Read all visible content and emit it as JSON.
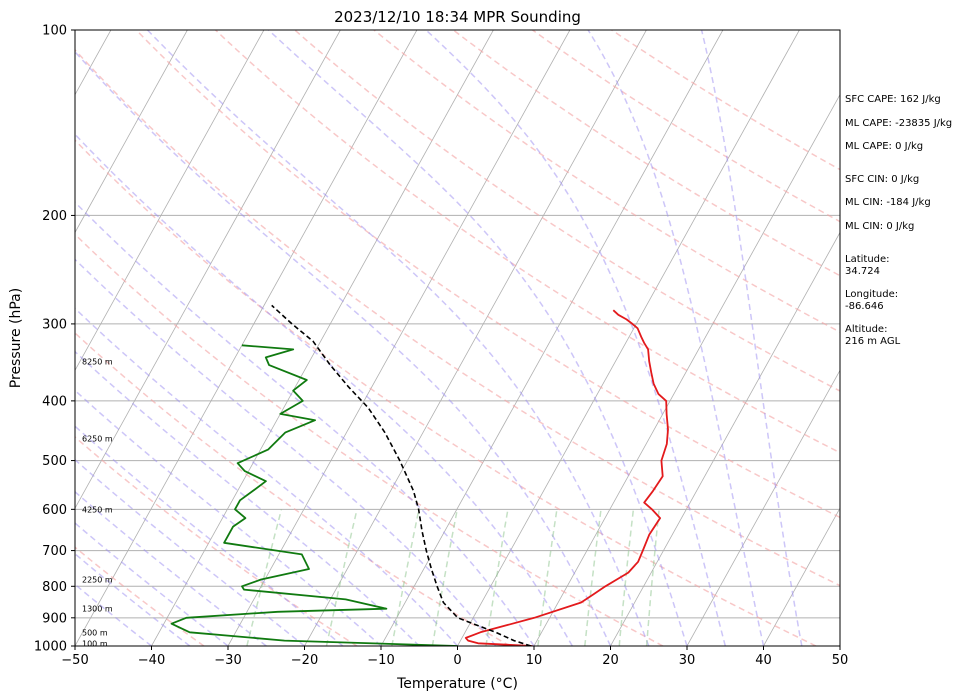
{
  "chart_data": {
    "type": "line",
    "title": "2023/12/10 18:34 MPR Sounding",
    "xlabel": "Temperature (°C)",
    "ylabel": "Pressure (hPa)",
    "xlim": [
      -50,
      50
    ],
    "ylim": [
      1000,
      100
    ],
    "y_scale": "log",
    "skew": true,
    "grid": true,
    "x_ticks": [
      "−50",
      "−40",
      "−30",
      "−20",
      "−10",
      "0",
      "10",
      "20",
      "30",
      "40",
      "50"
    ],
    "y_ticks": [
      "100",
      "200",
      "300",
      "400",
      "500",
      "600",
      "700",
      "800",
      "900",
      "1000"
    ],
    "series": [
      {
        "color": "#e31a1c",
        "x": [
          9.8,
          2.5,
          1.0,
          0.5,
          2.0,
          8.0,
          13.0,
          14.0,
          15.0,
          16.0,
          17.0,
          17.5,
          17.3,
          17.0,
          17.2,
          15.5,
          14.0,
          14.3,
          14.5,
          13.2,
          12.7,
          11.8,
          10.5,
          9.5,
          8.0,
          6.6,
          5.5,
          4.4,
          3.4,
          2.4,
          1.6,
          0.5,
          -0.5,
          -1.6,
          -3.0,
          -4.0
        ],
        "y": [
          1000,
          990,
          980,
          970,
          950,
          900,
          850,
          825,
          800,
          780,
          760,
          730,
          700,
          660,
          620,
          600,
          585,
          560,
          530,
          500,
          470,
          445,
          420,
          400,
          390,
          375,
          360,
          345,
          330,
          322,
          315,
          305,
          300,
          295,
          290,
          285
        ]
      },
      {
        "color": "#107a10",
        "x": [
          0.0,
          -23.0,
          -36.0,
          -39.0,
          -37.5,
          -26.0,
          -12.0,
          -18.0,
          -32.0,
          -32.5,
          -30.5,
          -25.0,
          -27.0,
          -38.0,
          -38.0,
          -37.0,
          -39.0,
          -39.0,
          -38.0,
          -37.0,
          -40.5,
          -42.0,
          -39.0,
          -38.0,
          -35.0,
          -40.0,
          -38.0,
          -40.0,
          -39.0,
          -45.0,
          -46.0,
          -43.0,
          -50.0
        ],
        "y": [
          1000,
          980,
          950,
          920,
          900,
          880,
          870,
          840,
          810,
          800,
          780,
          750,
          710,
          680,
          640,
          620,
          600,
          580,
          560,
          540,
          520,
          505,
          480,
          450,
          430,
          420,
          400,
          385,
          370,
          350,
          340,
          330,
          325
        ]
      },
      {
        "color": "#000000",
        "dash": "dashed",
        "x": [
          9.6,
          7.0,
          4.0,
          1.0,
          -2.0,
          -5.0,
          -7.0,
          -9.0,
          -11.0,
          -13.0,
          -15.0,
          -17.0,
          -21.0,
          -25.0,
          -29.0,
          -33.0,
          -37.0,
          -41.0,
          -45.0,
          -49.0
        ],
        "y": [
          1000,
          980,
          950,
          925,
          900,
          850,
          800,
          750,
          700,
          650,
          600,
          560,
          500,
          450,
          410,
          380,
          350,
          320,
          300,
          280
        ]
      }
    ],
    "altitude_markers": [
      {
        "label": "100 m",
        "pressure": 990
      },
      {
        "label": "500 m",
        "pressure": 950
      },
      {
        "label": "1300 m",
        "pressure": 870
      },
      {
        "label": "2250 m",
        "pressure": 780
      },
      {
        "label": "4250 m",
        "pressure": 600
      },
      {
        "label": "6250 m",
        "pressure": 460
      },
      {
        "label": "8250 m",
        "pressure": 345
      }
    ],
    "annotations": [
      "SFC CAPE: 162 J/kg",
      "ML CAPE: -23835 J/kg",
      "ML CAPE: 0 J/kg",
      "SFC CIN: 0 J/kg",
      "ML CIN: -184 J/kg",
      "ML CIN: 0 J/kg",
      "Latitude:",
      "34.724",
      "Longitude:",
      "-86.646",
      "Altitude:",
      "216 m AGL"
    ],
    "background_colors": {
      "isotherm": "#b0b0b0",
      "dry_adiabat": "#f4a3a3",
      "moist_adiabat": "#9b8df2",
      "mixing_ratio": "#8bc48b"
    }
  }
}
